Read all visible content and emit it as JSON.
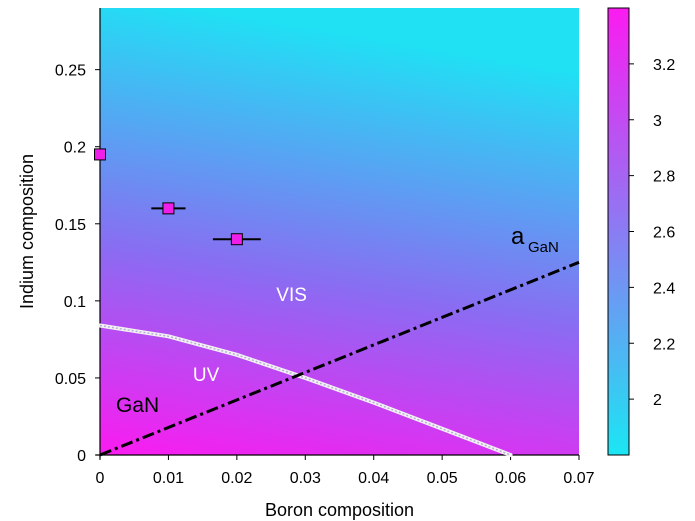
{
  "chart_data": {
    "type": "heatmap",
    "xlabel": "Boron composition",
    "ylabel": "Indium composition",
    "xlim": [
      0,
      0.07
    ],
    "ylim": [
      0,
      0.29
    ],
    "x_ticks": [
      "0",
      "0.01",
      "0.02",
      "0.03",
      "0.04",
      "0.05",
      "0.06",
      "0.07"
    ],
    "y_ticks": [
      "0",
      "0.05",
      "0.1",
      "0.15",
      "0.2",
      "0.25"
    ],
    "colorbar": {
      "range": [
        1.8,
        3.4
      ],
      "ticks": [
        "2",
        "2.2",
        "2.4",
        "2.6",
        "2.8",
        "3",
        "3.2"
      ],
      "low_color": "#1be6f3",
      "high_color": "#fb1bf1"
    },
    "points": [
      {
        "x": 0.0,
        "y": 0.195,
        "xerr": 0.0
      },
      {
        "x": 0.01,
        "y": 0.16,
        "xerr": 0.0025
      },
      {
        "x": 0.02,
        "y": 0.14,
        "xerr": 0.0035
      }
    ],
    "lattice_match_line": {
      "label_main": "a",
      "label_sub": "GaN",
      "x": [
        0.0,
        0.07
      ],
      "y": [
        0.0,
        0.125
      ]
    },
    "uv_vis_boundary": {
      "x": [
        0.0,
        0.01,
        0.02,
        0.03,
        0.04,
        0.05,
        0.06
      ],
      "y": [
        0.084,
        0.077,
        0.065,
        0.05,
        0.034,
        0.017,
        0.0
      ]
    },
    "annotations": [
      {
        "text": "VIS",
        "x": 0.028,
        "y": 0.1
      },
      {
        "text": "UV",
        "x": 0.0155,
        "y": 0.048
      },
      {
        "text": "GaN",
        "x": 0.0055,
        "y": 0.028
      }
    ]
  }
}
